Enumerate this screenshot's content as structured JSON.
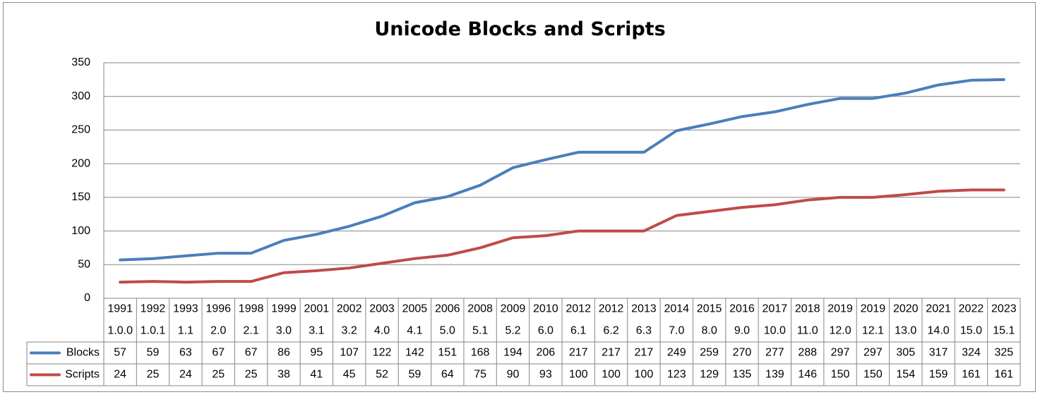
{
  "chart_data": {
    "type": "line",
    "title": "Unicode Blocks and Scripts",
    "xlabel": "",
    "ylabel": "",
    "ylim": [
      0,
      350
    ],
    "yticks": [
      "0",
      "50",
      "100",
      "150",
      "200",
      "250",
      "300",
      "350"
    ],
    "grid": true,
    "legend": "data-table",
    "years": [
      "1991",
      "1992",
      "1993",
      "1996",
      "1998",
      "1999",
      "2001",
      "2002",
      "2003",
      "2005",
      "2006",
      "2008",
      "2009",
      "2010",
      "2012",
      "2012",
      "2013",
      "2014",
      "2015",
      "2016",
      "2017",
      "2018",
      "2019",
      "2019",
      "2020",
      "2021",
      "2022",
      "2023"
    ],
    "versions": [
      "1.0.0",
      "1.0.1",
      "1.1",
      "2.0",
      "2.1",
      "3.0",
      "3.1",
      "3.2",
      "4.0",
      "4.1",
      "5.0",
      "5.1",
      "5.2",
      "6.0",
      "6.1",
      "6.2",
      "6.3",
      "7.0",
      "8.0",
      "9.0",
      "10.0",
      "11.0",
      "12.0",
      "12.1",
      "13.0",
      "14.0",
      "15.0",
      "15.1"
    ],
    "series": [
      {
        "name": "Blocks",
        "color": "#4a7ebb",
        "values": [
          57,
          59,
          63,
          67,
          67,
          86,
          95,
          107,
          122,
          142,
          151,
          168,
          194,
          206,
          217,
          217,
          217,
          249,
          259,
          270,
          277,
          288,
          297,
          297,
          305,
          317,
          324,
          325
        ]
      },
      {
        "name": "Scripts",
        "color": "#be4b48",
        "values": [
          24,
          25,
          24,
          25,
          25,
          38,
          41,
          45,
          52,
          59,
          64,
          75,
          90,
          93,
          100,
          100,
          100,
          123,
          129,
          135,
          139,
          146,
          150,
          150,
          154,
          159,
          161,
          161
        ]
      }
    ]
  }
}
